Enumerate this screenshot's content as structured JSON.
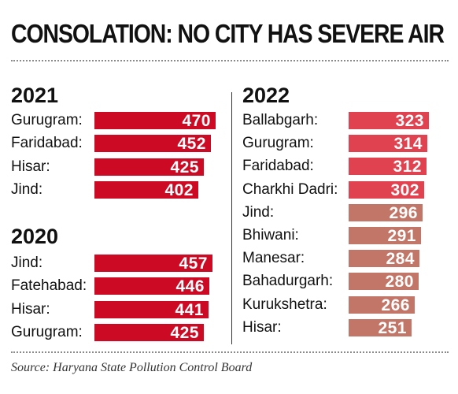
{
  "title": "CONSOLATION: NO CITY HAS SEVERE AIR",
  "source": "Source: Haryana State Pollution Control Board",
  "colors": {
    "red_2021_2020": "#cc0a24",
    "red_2022_light": "#e0424f",
    "brown_2022": "#c27668"
  },
  "chart_data": [
    {
      "type": "bar",
      "title": "2021",
      "categories": [
        "Gurugram:",
        "Faridabad:",
        "Hisar:",
        "Jind:"
      ],
      "values": [
        470,
        452,
        425,
        402
      ]
    },
    {
      "type": "bar",
      "title": "2020",
      "categories": [
        "Jind:",
        "Fatehabad:",
        "Hisar:",
        "Gurugram:"
      ],
      "values": [
        457,
        446,
        441,
        425
      ]
    },
    {
      "type": "bar",
      "title": "2022",
      "categories": [
        "Ballabgarh:",
        "Gurugram:",
        "Faridabad:",
        "Charkhi Dadri:",
        "Jind:",
        "Bhiwani:",
        "Manesar:",
        "Bahadurgarh:",
        "Kurukshetra:",
        "Hisar:"
      ],
      "values": [
        323,
        314,
        312,
        302,
        296,
        291,
        284,
        280,
        266,
        251
      ]
    }
  ]
}
